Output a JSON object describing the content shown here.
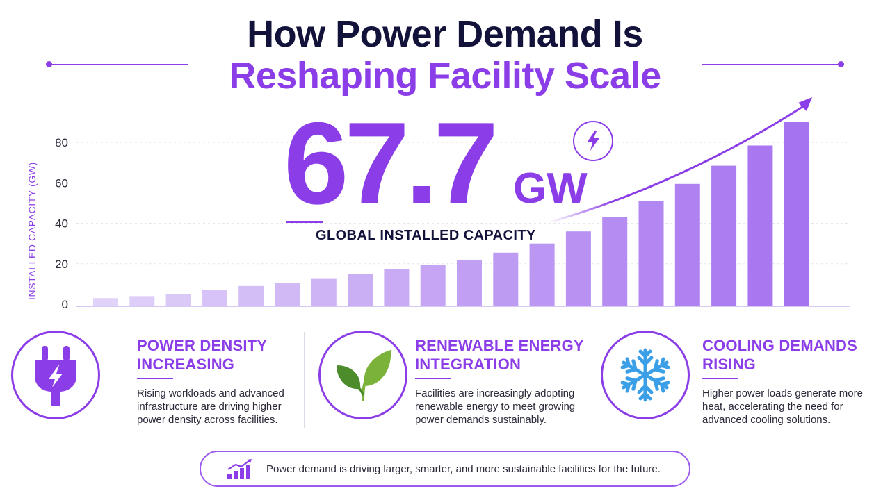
{
  "title": {
    "line1": "How Power Demand Is",
    "line2": "Reshaping Facility Scale"
  },
  "colors": {
    "accent": "#8b3de8",
    "heading": "#12123a",
    "bar_light": "#e0d2f8",
    "bar_dark": "#a673f0",
    "snowflake": "#3b9fe8",
    "leaf_dark": "#4c8c2b",
    "leaf_light": "#7bb33a"
  },
  "highlight": {
    "value": "67.7",
    "unit": "GW",
    "label": "GLOBAL INSTALLED CAPACITY",
    "icon": "lightning-bolt-icon"
  },
  "chart_data": {
    "type": "bar",
    "ylabel": "INSTALLED CAPACITY (GW)",
    "xlabel": "",
    "ylim": [
      0,
      90
    ],
    "yticks": [
      0,
      20,
      40,
      60,
      80
    ],
    "grid": true,
    "trend_arrow": true,
    "values": [
      3,
      4,
      5,
      7,
      9,
      10.5,
      12.5,
      15,
      17.5,
      19.5,
      22,
      25.5,
      30,
      36,
      43,
      51,
      59.5,
      68.5,
      78.5,
      90
    ]
  },
  "cards": [
    {
      "icon": "power-plug-icon",
      "title_line1": "POWER DENSITY",
      "title_line2": "INCREASING",
      "text_line1": "Rising workloads and advanced",
      "text_line2": "infrastructure are driving higher",
      "text_line3": "power density across facilities."
    },
    {
      "icon": "leaf-icon",
      "title_line1": "RENEWABLE ENERGY",
      "title_line2": "INTEGRATION",
      "text_line1": "Facilities are increasingly adopting",
      "text_line2": "renewable energy to meet growing",
      "text_line3": "power demands sustainably."
    },
    {
      "icon": "snowflake-icon",
      "title_line1": "COOLING DEMANDS",
      "title_line2": "RISING",
      "text_line1": "Higher power loads generate more",
      "text_line2": "heat, accelerating the need for",
      "text_line3": "advanced cooling solutions."
    }
  ],
  "footer": {
    "icon": "growth-chart-icon",
    "text": "Power demand is driving larger, smarter, and more sustainable facilities for the future."
  }
}
